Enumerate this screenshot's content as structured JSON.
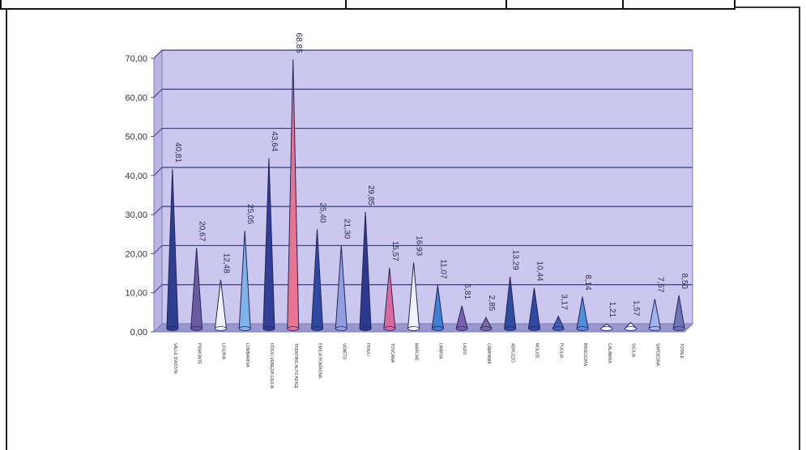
{
  "chart_data": {
    "type": "bar",
    "title": "",
    "xlabel": "",
    "ylabel": "",
    "ylim": [
      0,
      70
    ],
    "y_ticks": [
      "0,00",
      "10,00",
      "20,00",
      "30,00",
      "40,00",
      "50,00",
      "60,00",
      "70,00"
    ],
    "grid": true,
    "legend": "none",
    "categories": [
      "VALLE D'AOSTA",
      "PIEMONTE",
      "LIGURIA",
      "LOMBARDIA",
      "FRIULI VENEZIA GIULIA",
      "TRENTINO ALTO ADIGE",
      "EMILIA ROMAGNA",
      "VENETO",
      "FRIULI",
      "TOSCANA",
      "MARCHE",
      "UMBRIA",
      "LAZIO",
      "CAMPANIA",
      "ABRUZZO",
      "MOLISE",
      "PUGLIA",
      "BASILICATA",
      "CALABRIA",
      "SICILIA",
      "SARDEGNA",
      "TOTALE"
    ],
    "values": [
      40.81,
      20.67,
      12.48,
      25.05,
      43.64,
      68.85,
      25.4,
      21.3,
      29.85,
      15.57,
      16.93,
      11.07,
      5.81,
      2.85,
      13.29,
      10.44,
      3.17,
      8.14,
      1.21,
      1.57,
      7.57,
      8.5
    ],
    "value_labels": [
      "40,81",
      "20,67",
      "12,48",
      "25,05",
      "43,64",
      "68,85",
      "25,40",
      "21,30",
      "29,85",
      "15,57",
      "16,93",
      "11,07",
      "5,81",
      "2,85",
      "13,29",
      "10,44",
      "3,17",
      "8,14",
      "1,21",
      "1,57",
      "7,57",
      "8,50"
    ],
    "colors": [
      "#2e3f8f",
      "#6b5aa0",
      "#f4f4ff",
      "#7fb3ea",
      "#2f3f96",
      "#e77591",
      "#2d4aa0",
      "#8f9fdf",
      "#2b3a8c",
      "#d96aa0",
      "#f2f2ff",
      "#3d7fd0",
      "#7a5fb0",
      "#7b6aa5",
      "#2f4c9f",
      "#2f4aa0",
      "#3d5fb5",
      "#4f8fd8",
      "#f5f5ff",
      "#f5f5ff",
      "#9fb5ef",
      "#6f75b5"
    ],
    "plot_colors": {
      "background": "#ccc7ee",
      "grid": "#3a3a8a",
      "axis": "#7a78b5",
      "floor": "#9a97cf"
    }
  }
}
